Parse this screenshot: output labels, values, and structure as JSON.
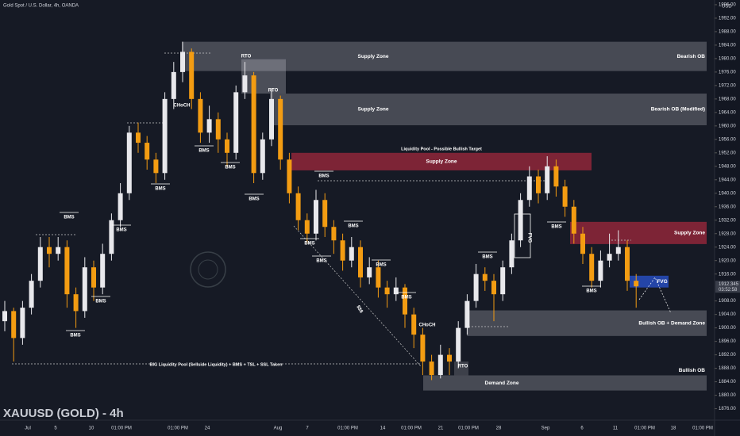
{
  "chart_data": {
    "type": "candlestick",
    "title": "Gold Spot / U.S. Dollar, 4h, OANDA",
    "symbol_title": "XAUUSD (GOLD) - 4h",
    "currency": "USD",
    "countdown": "03:52:58",
    "up_color": "#e8e8ec",
    "down_color": "#f39c12",
    "ylim": [
      1872.6,
      1997.4
    ],
    "yticks": [
      {
        "value": 1876,
        "label": "1876.00"
      },
      {
        "value": 1880,
        "label": "1880.00"
      },
      {
        "value": 1884,
        "label": "1884.00"
      },
      {
        "value": 1888,
        "label": "1888.00"
      },
      {
        "value": 1892,
        "label": "1892.00"
      },
      {
        "value": 1896,
        "label": "1896.00"
      },
      {
        "value": 1900,
        "label": "1900.00"
      },
      {
        "value": 1904,
        "label": "1904.00"
      },
      {
        "value": 1908,
        "label": "1908.00"
      },
      {
        "value": 1916,
        "label": "1916.00"
      },
      {
        "value": 1920,
        "label": "1920.00"
      },
      {
        "value": 1924,
        "label": "1924.00"
      },
      {
        "value": 1928,
        "label": "1928.00"
      },
      {
        "value": 1932,
        "label": "1932.00"
      },
      {
        "value": 1936,
        "label": "1936.00"
      },
      {
        "value": 1940,
        "label": "1940.00"
      },
      {
        "value": 1944,
        "label": "1944.00"
      },
      {
        "value": 1948,
        "label": "1948.00"
      },
      {
        "value": 1952,
        "label": "1952.00"
      },
      {
        "value": 1956,
        "label": "1956.00"
      },
      {
        "value": 1960,
        "label": "1960.00"
      },
      {
        "value": 1964,
        "label": "1964.00"
      },
      {
        "value": 1968,
        "label": "1968.00"
      },
      {
        "value": 1972,
        "label": "1972.00"
      },
      {
        "value": 1976,
        "label": "1976.00"
      },
      {
        "value": 1980,
        "label": "1980.00"
      },
      {
        "value": 1984,
        "label": "1984.00"
      },
      {
        "value": 1988,
        "label": "1988.00"
      },
      {
        "value": 1992,
        "label": "1992.00"
      },
      {
        "value": 1996,
        "label": "1996.00"
      }
    ],
    "xlabels": [
      "Jul",
      "5",
      "10",
      "01:00 PM",
      "01:00 PM",
      "24",
      "Aug",
      "7",
      "01:00 PM",
      "14",
      "01:00 PM",
      "21",
      "01:00 PM",
      "28",
      "Sep",
      "6",
      "11",
      "01:00 PM",
      "18",
      "01:00 PM"
    ],
    "candles": [
      [
        1902,
        1908,
        1899,
        1905
      ],
      [
        1905,
        1906,
        1890,
        1897
      ],
      [
        1897,
        1908,
        1895,
        1906
      ],
      [
        1906,
        1916,
        1904,
        1914
      ],
      [
        1914,
        1927,
        1912,
        1924
      ],
      [
        1924,
        1927,
        1918,
        1922
      ],
      [
        1922,
        1927,
        1920,
        1924
      ],
      [
        1924,
        1926,
        1906,
        1910
      ],
      [
        1910,
        1912,
        1900,
        1905
      ],
      [
        1905,
        1921,
        1903,
        1918
      ],
      [
        1918,
        1920,
        1908,
        1912
      ],
      [
        1912,
        1925,
        1910,
        1922
      ],
      [
        1922,
        1934,
        1920,
        1932
      ],
      [
        1932,
        1943,
        1930,
        1940
      ],
      [
        1940,
        1960,
        1938,
        1958
      ],
      [
        1958,
        1961,
        1952,
        1955
      ],
      [
        1955,
        1957,
        1947,
        1950
      ],
      [
        1950,
        1952,
        1943,
        1946
      ],
      [
        1946,
        1970,
        1944,
        1968
      ],
      [
        1968,
        1979,
        1965,
        1976
      ],
      [
        1976,
        1985,
        1973,
        1982
      ],
      [
        1982,
        1983,
        1965,
        1968
      ],
      [
        1968,
        1970,
        1955,
        1958
      ],
      [
        1958,
        1966,
        1955,
        1962
      ],
      [
        1962,
        1964,
        1952,
        1956
      ],
      [
        1956,
        1958,
        1948,
        1952
      ],
      [
        1952,
        1972,
        1950,
        1970
      ],
      [
        1970,
        1979,
        1968,
        1975
      ],
      [
        1975,
        1976,
        1943,
        1946
      ],
      [
        1946,
        1958,
        1944,
        1956
      ],
      [
        1956,
        1971,
        1954,
        1968
      ],
      [
        1968,
        1969,
        1947,
        1950
      ],
      [
        1950,
        1952,
        1937,
        1940
      ],
      [
        1940,
        1942,
        1929,
        1932
      ],
      [
        1932,
        1934,
        1925,
        1928
      ],
      [
        1928,
        1941,
        1926,
        1938
      ],
      [
        1938,
        1940,
        1927,
        1930
      ],
      [
        1930,
        1932,
        1922,
        1926
      ],
      [
        1926,
        1928,
        1917,
        1920
      ],
      [
        1920,
        1927,
        1918,
        1924
      ],
      [
        1924,
        1926,
        1912,
        1915
      ],
      [
        1915,
        1921,
        1913,
        1918
      ],
      [
        1918,
        1920,
        1909,
        1912
      ],
      [
        1912,
        1914,
        1906,
        1910
      ],
      [
        1910,
        1915,
        1908,
        1912
      ],
      [
        1912,
        1913,
        1900,
        1904
      ],
      [
        1904,
        1906,
        1894,
        1898
      ],
      [
        1898,
        1900,
        1886,
        1890
      ],
      [
        1890,
        1892,
        1884.5,
        1886
      ],
      [
        1886,
        1895,
        1885,
        1892
      ],
      [
        1892,
        1894,
        1886,
        1890
      ],
      [
        1890,
        1902,
        1888,
        1900
      ],
      [
        1900,
        1910,
        1898,
        1908
      ],
      [
        1908,
        1919,
        1906,
        1916
      ],
      [
        1916,
        1918,
        1911,
        1914
      ],
      [
        1914,
        1916,
        1902,
        1910
      ],
      [
        1910,
        1920,
        1908,
        1918
      ],
      [
        1918,
        1928,
        1916,
        1926
      ],
      [
        1926,
        1940,
        1924,
        1938
      ],
      [
        1938,
        1948,
        1936,
        1945
      ],
      [
        1945,
        1947,
        1937,
        1940
      ],
      [
        1940,
        1951,
        1938,
        1948
      ],
      [
        1948,
        1950,
        1939,
        1942
      ],
      [
        1942,
        1944,
        1933,
        1936
      ],
      [
        1936,
        1938,
        1925,
        1928
      ],
      [
        1928,
        1930,
        1919,
        1922
      ],
      [
        1922,
        1924,
        1912,
        1914
      ],
      [
        1914,
        1923,
        1912,
        1920
      ],
      [
        1920,
        1928,
        1918,
        1922
      ],
      [
        1922,
        1929,
        1920,
        1924
      ],
      [
        1924,
        1926,
        1911,
        1914
      ],
      [
        1914,
        1916,
        1906,
        1912.345
      ]
    ],
    "zones": [
      {
        "label": "Supply Zone",
        "side_label": "Bearish OB",
        "top": 1985,
        "bottom": 1976.3,
        "color": "rgba(200,200,210,0.28)"
      },
      {
        "top": 1979.8,
        "bottom": 1969.6,
        "color": "rgba(200,200,210,0.30)"
      },
      {
        "label": "Supply Zone",
        "side_label": "Bearish OB (Modified)",
        "top": 1969.6,
        "bottom": 1960.2,
        "color": "rgba(200,200,210,0.28)"
      },
      {
        "label": "Supply Zone",
        "top": 1952,
        "bottom": 1946.8,
        "color": "rgba(160,40,60,0.75)"
      },
      {
        "side_label": "Supply Zone",
        "top": 1931.5,
        "bottom": 1924.9,
        "color": "rgba(160,40,60,0.75)"
      },
      {
        "label": "FVG",
        "top": 1915.5,
        "bottom": 1912,
        "color": "rgba(40,80,200,0.8)"
      },
      {
        "side_label": "Bullish OB + Demand Zone",
        "top": 1905.2,
        "bottom": 1897.6,
        "color": "rgba(200,200,210,0.28)"
      },
      {
        "label": "Demand Zone",
        "side_label": "Bullish OB",
        "top": 1885.9,
        "bottom": 1881.4,
        "color": "rgba(200,200,210,0.28)"
      },
      {
        "top": 1890,
        "bottom": 1885.9,
        "color": "rgba(200,200,210,0.22)"
      }
    ],
    "annotations": [
      "RTO",
      "RTO",
      "CHoCH",
      "CHoCH",
      "RTO",
      "Liquidity Pool - Possible Bullish Target",
      "BIG Liquidity Pool (Sellside Liquidity) + BMS + TSL + SSL Taken",
      "$$$",
      "FVG",
      "BMS",
      "BMS",
      "BMS",
      "BMS",
      "BMS",
      "BMS",
      "BMS",
      "BMS",
      "BMS",
      "BMS",
      "BMS",
      "BMS",
      "BMS",
      "BMS",
      "BMS",
      "BMS",
      "BMS"
    ]
  }
}
